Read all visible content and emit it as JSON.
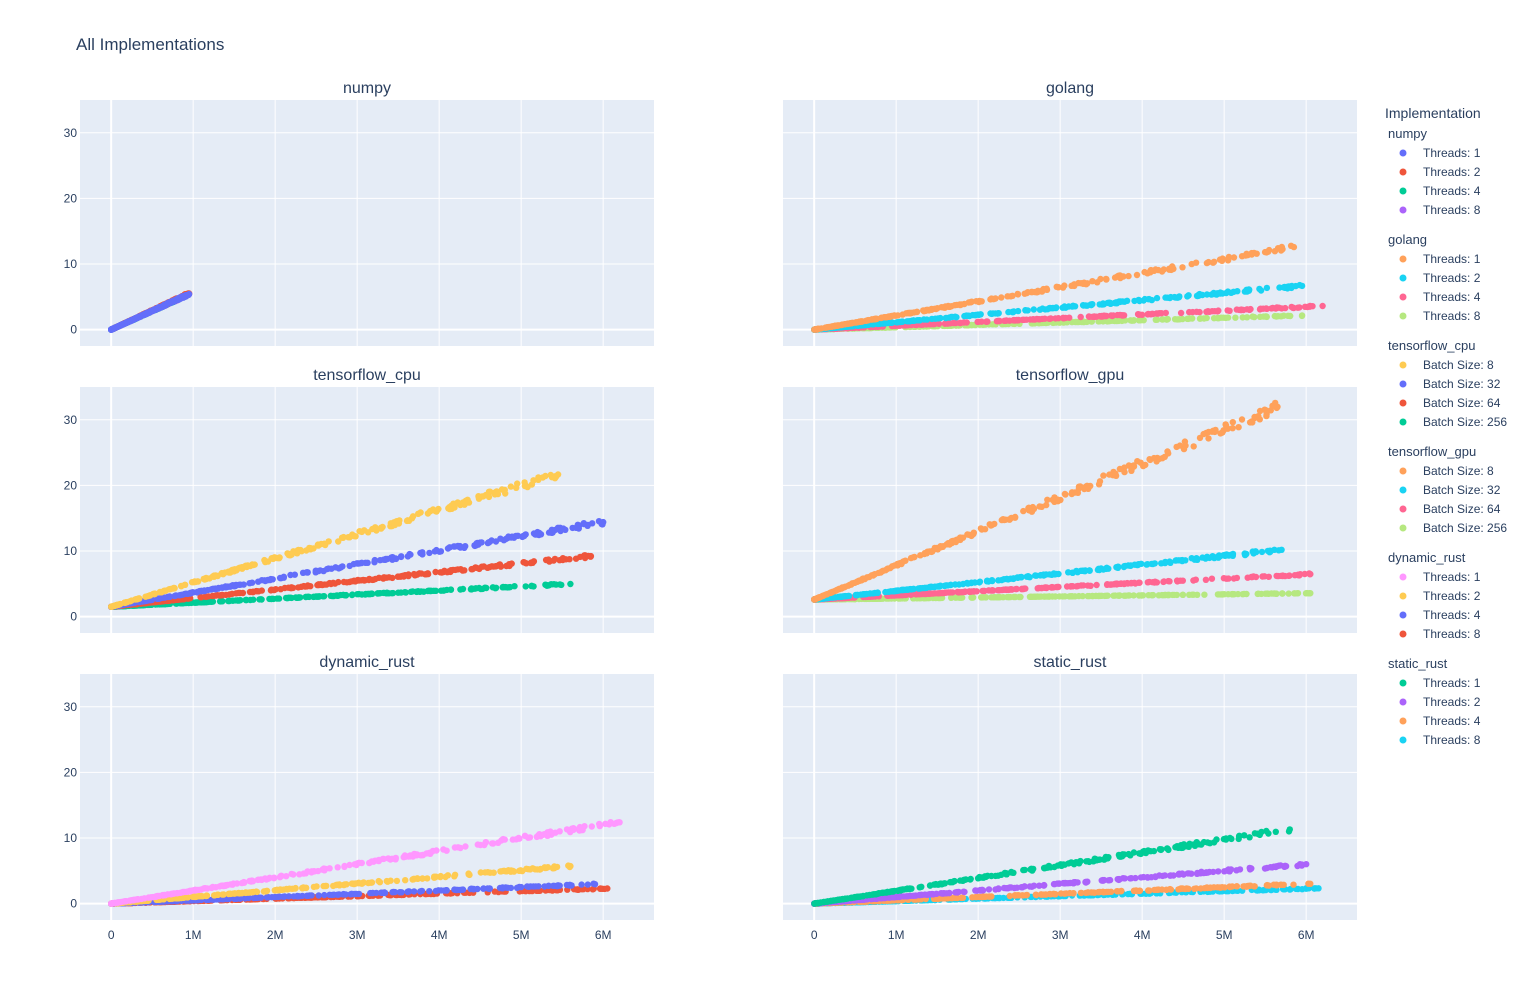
{
  "title": "All Implementations",
  "legend": {
    "title": "Implementation"
  },
  "axes": {
    "x_ticks": [
      {
        "v": 0,
        "label": "0"
      },
      {
        "v": 1000000,
        "label": "1M"
      },
      {
        "v": 2000000,
        "label": "2M"
      },
      {
        "v": 3000000,
        "label": "3M"
      },
      {
        "v": 4000000,
        "label": "4M"
      },
      {
        "v": 5000000,
        "label": "5M"
      },
      {
        "v": 6000000,
        "label": "6M"
      }
    ],
    "y_ticks": [
      {
        "v": 0,
        "label": "0"
      },
      {
        "v": 10,
        "label": "10"
      },
      {
        "v": 20,
        "label": "20"
      },
      {
        "v": 30,
        "label": "30"
      }
    ],
    "xlim": [
      -380000,
      6620000
    ],
    "ylim": [
      -2.5,
      35
    ],
    "grid": true,
    "legend_position": "right"
  },
  "chart_data": [
    {
      "type": "scatter",
      "title": "numpy",
      "series": [
        {
          "name": "Threads: 1",
          "color": "#636efa",
          "x_max": 950000,
          "slope": 5.7,
          "intercept": 0.0
        },
        {
          "name": "Threads: 2",
          "color": "#ef553b",
          "x_max": 950000,
          "slope": 5.8,
          "intercept": 0.0
        },
        {
          "name": "Threads: 4",
          "color": "#00cc96",
          "x_max": 900000,
          "slope": 5.7,
          "intercept": 0.0
        },
        {
          "name": "Threads: 8",
          "color": "#ab63fa",
          "x_max": 920000,
          "slope": 5.7,
          "intercept": 0.0
        }
      ]
    },
    {
      "type": "scatter",
      "title": "golang",
      "series": [
        {
          "name": "Threads: 1",
          "color": "#ffa15a",
          "x_max": 5850000,
          "slope": 2.15,
          "intercept": 0.0
        },
        {
          "name": "Threads: 2",
          "color": "#19d3f3",
          "x_max": 5950000,
          "slope": 1.12,
          "intercept": 0.0
        },
        {
          "name": "Threads: 4",
          "color": "#ff6692",
          "x_max": 6200000,
          "slope": 0.58,
          "intercept": 0.0
        },
        {
          "name": "Threads: 8",
          "color": "#b6e880",
          "x_max": 5950000,
          "slope": 0.36,
          "intercept": 0.0
        }
      ]
    },
    {
      "type": "scatter",
      "title": "tensorflow_cpu",
      "series": [
        {
          "name": "Batch Size: 8",
          "color": "#fecb52",
          "x_max": 5450000,
          "slope": 3.7,
          "intercept": 1.5
        },
        {
          "name": "Batch Size: 32",
          "color": "#636efa",
          "x_max": 6000000,
          "slope": 2.15,
          "intercept": 1.5
        },
        {
          "name": "Batch Size: 64",
          "color": "#ef553b",
          "x_max": 5850000,
          "slope": 1.32,
          "intercept": 1.5
        },
        {
          "name": "Batch Size: 256",
          "color": "#00cc96",
          "x_max": 5600000,
          "slope": 0.62,
          "intercept": 1.5
        }
      ]
    },
    {
      "type": "scatter",
      "title": "tensorflow_gpu",
      "series": [
        {
          "name": "Batch Size: 8",
          "color": "#ffa15a",
          "x_max": 5650000,
          "slope": 5.2,
          "intercept": 2.6
        },
        {
          "name": "Batch Size: 32",
          "color": "#19d3f3",
          "x_max": 5700000,
          "slope": 1.33,
          "intercept": 2.6
        },
        {
          "name": "Batch Size: 64",
          "color": "#ff6692",
          "x_max": 6050000,
          "slope": 0.64,
          "intercept": 2.6
        },
        {
          "name": "Batch Size: 256",
          "color": "#b6e880",
          "x_max": 6050000,
          "slope": 0.16,
          "intercept": 2.6
        }
      ]
    },
    {
      "type": "scatter",
      "title": "dynamic_rust",
      "series": [
        {
          "name": "Threads: 1",
          "color": "#ff97ff",
          "x_max": 6200000,
          "slope": 2.0,
          "intercept": 0.0
        },
        {
          "name": "Threads: 2",
          "color": "#fecb52",
          "x_max": 5600000,
          "slope": 1.02,
          "intercept": 0.0
        },
        {
          "name": "Threads: 4",
          "color": "#636efa",
          "x_max": 5900000,
          "slope": 0.5,
          "intercept": 0.0
        },
        {
          "name": "Threads: 8",
          "color": "#ef553b",
          "x_max": 6050000,
          "slope": 0.38,
          "intercept": 0.0
        }
      ]
    },
    {
      "type": "scatter",
      "title": "static_rust",
      "series": [
        {
          "name": "Threads: 1",
          "color": "#00cc96",
          "x_max": 5800000,
          "slope": 1.95,
          "intercept": 0.0
        },
        {
          "name": "Threads: 2",
          "color": "#ab63fa",
          "x_max": 6000000,
          "slope": 1.0,
          "intercept": 0.0
        },
        {
          "name": "Threads: 4",
          "color": "#ffa15a",
          "x_max": 6050000,
          "slope": 0.5,
          "intercept": 0.0
        },
        {
          "name": "Threads: 8",
          "color": "#19d3f3",
          "x_max": 6150000,
          "slope": 0.38,
          "intercept": 0.0
        }
      ]
    }
  ]
}
